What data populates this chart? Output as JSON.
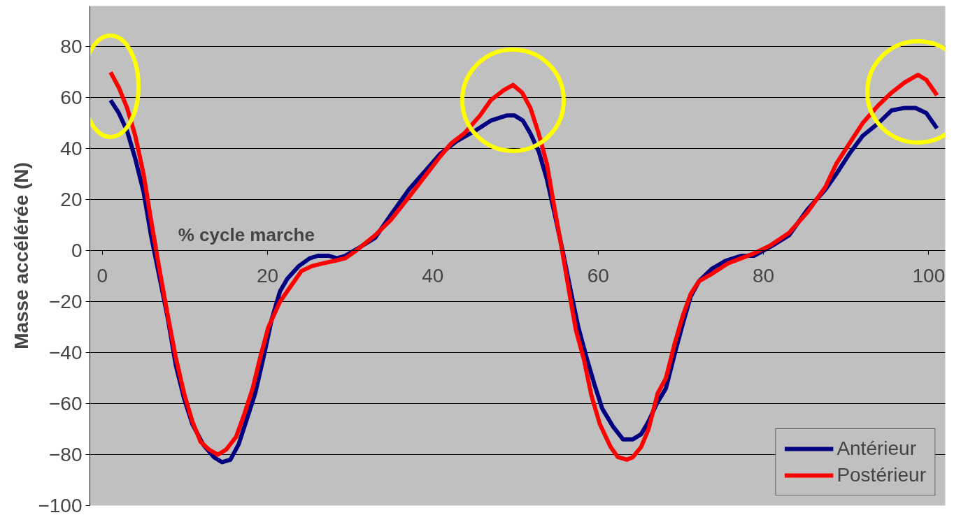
{
  "chart_data": {
    "type": "line",
    "xlabel": "% cycle marche",
    "ylabel": "Masse accélérée (N)",
    "xlim": [
      -1.5,
      102
    ],
    "xticks": [
      0,
      20,
      40,
      60,
      80,
      100
    ],
    "ylim": [
      -100,
      96
    ],
    "yticks": [
      -100,
      -80,
      -60,
      -40,
      -20,
      0,
      20,
      40,
      60,
      80
    ],
    "grid": "y",
    "legend": "bottom right",
    "line_style": "solid",
    "marker": "none",
    "series": [
      {
        "name": "Antérieur",
        "color": "#000080",
        "x": [
          1,
          2,
          3,
          4,
          5,
          5.9,
          6.9,
          7.9,
          8.9,
          9.9,
          10.9,
          12.2,
          13.5,
          14.5,
          15.5,
          16.5,
          17.5,
          18.5,
          19.5,
          20.5,
          21.5,
          22.4,
          23.8,
          25.1,
          26.1,
          27.4,
          28.4,
          29.4,
          31,
          33,
          34.9,
          37.1,
          39,
          40.9,
          42.9,
          45.1,
          47,
          48.9,
          49.9,
          50.9,
          51.8,
          52.8,
          53.8,
          54.7,
          55.7,
          56.7,
          57.6,
          58.6,
          59.6,
          60.5,
          61.8,
          63,
          64.2,
          65.2,
          66.1,
          67.1,
          68.2,
          69.3,
          70.3,
          71.2,
          72.2,
          73.8,
          75.4,
          77.3,
          78.9,
          81.1,
          83.1,
          85.3,
          87.5,
          88.8,
          90.4,
          92,
          93.9,
          95.5,
          97.1,
          98.4,
          99.7,
          101
        ],
        "values": [
          59,
          54,
          47,
          36,
          23,
          6,
          -10,
          -26,
          -45,
          -58,
          -68,
          -76,
          -81,
          -83,
          -82,
          -76,
          -66,
          -56,
          -42,
          -27,
          -16,
          -11,
          -6,
          -3,
          -2,
          -2,
          -3,
          -2,
          1,
          5,
          14,
          24,
          31,
          38,
          43,
          47,
          51,
          53,
          53,
          51,
          46,
          39,
          28,
          15,
          0,
          -16,
          -30,
          -42,
          -53,
          -62,
          -69,
          -74,
          -74,
          -72,
          -67,
          -60,
          -54,
          -40,
          -28,
          -18,
          -12,
          -7,
          -4,
          -2,
          -2,
          2,
          6,
          16,
          24,
          30,
          38,
          45,
          50,
          55,
          56,
          56,
          54,
          48
        ]
      },
      {
        "name": "Postérieur",
        "color": "#ff0000",
        "x": [
          1,
          2,
          3,
          4,
          5,
          5.9,
          6.9,
          7.9,
          8.9,
          9.9,
          10.9,
          11.9,
          12.9,
          14,
          15,
          16.2,
          17.2,
          18.2,
          19.1,
          20.1,
          21.5,
          22.8,
          24.1,
          25.4,
          26.7,
          28.1,
          29.4,
          30.7,
          33,
          34.9,
          37.1,
          39,
          40.9,
          42.2,
          43.8,
          45.7,
          47,
          48.6,
          49.7,
          50.8,
          51.8,
          52.8,
          53.8,
          54.7,
          55.7,
          56.7,
          57.3,
          58.3,
          59.2,
          60.2,
          61.5,
          62.4,
          63.5,
          64.2,
          65.2,
          66.1,
          67.2,
          68.2,
          69.3,
          70.3,
          71.2,
          72.2,
          73.8,
          75.7,
          77.3,
          78.9,
          80.8,
          83.1,
          85.3,
          87.5,
          88.8,
          90.4,
          92,
          93.9,
          95.5,
          97.1,
          98.7,
          99.7,
          101
        ],
        "values": [
          70,
          64,
          56,
          45,
          30,
          12,
          -7,
          -25,
          -42,
          -56,
          -67,
          -75,
          -78,
          -80,
          -78,
          -73,
          -64,
          -54,
          -42,
          -30,
          -20,
          -14,
          -8,
          -6,
          -5,
          -4,
          -3,
          0,
          6,
          12,
          21,
          29,
          37,
          42,
          46,
          53,
          59,
          63,
          65,
          62,
          56,
          46,
          34,
          17,
          -1,
          -20,
          -31,
          -43,
          -57,
          -68,
          -77,
          -81,
          -82,
          -81,
          -77,
          -70,
          -56,
          -50,
          -36,
          -25,
          -17,
          -12,
          -9,
          -5,
          -3,
          -1,
          2,
          7,
          15,
          25,
          34,
          42,
          50,
          57,
          62,
          66,
          69,
          67,
          61
        ]
      }
    ]
  }
}
